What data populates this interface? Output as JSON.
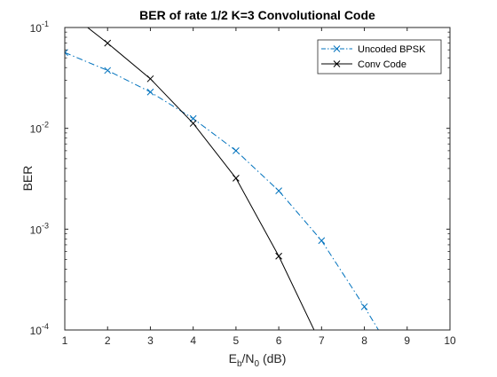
{
  "chart_data": {
    "type": "line",
    "title": "BER of rate 1/2 K=3 Convolutional Code",
    "xlabel": "E_b/N_0 (dB)",
    "xlabel_parts": {
      "main1": "E",
      "sub1": "b",
      "slash": "/N",
      "sub2": "0",
      "rest": " (dB)"
    },
    "ylabel": "BER",
    "xlim": [
      1,
      10
    ],
    "ylim": [
      0.0001,
      0.1
    ],
    "yscale": "log",
    "xticks": [
      "1",
      "2",
      "3",
      "4",
      "5",
      "6",
      "7",
      "8",
      "9",
      "10"
    ],
    "yticks": [
      {
        "base": "10",
        "exp": "-4",
        "value": 0.0001
      },
      {
        "base": "10",
        "exp": "-3",
        "value": 0.001
      },
      {
        "base": "10",
        "exp": "-2",
        "value": 0.01
      },
      {
        "base": "10",
        "exp": "-1",
        "value": 0.1
      }
    ],
    "grid": false,
    "legend_position": "top-right",
    "series": [
      {
        "name": "Uncoded BPSK",
        "color": "#0072BD",
        "line_style": "dash-dot",
        "marker": "x",
        "x": [
          1,
          2,
          3,
          4,
          5,
          6,
          7,
          8,
          9
        ],
        "y": [
          0.0565,
          0.0375,
          0.0229,
          0.0125,
          0.006,
          0.0024,
          0.00077,
          0.00017,
          3.4e-05
        ]
      },
      {
        "name": "Conv Code",
        "color": "#000000",
        "line_style": "solid",
        "marker": "x",
        "x": [
          1,
          2,
          3,
          4,
          5,
          6,
          7
        ],
        "y": [
          0.15,
          0.07,
          0.031,
          0.0112,
          0.0032,
          0.00054,
          7e-05
        ]
      }
    ]
  }
}
